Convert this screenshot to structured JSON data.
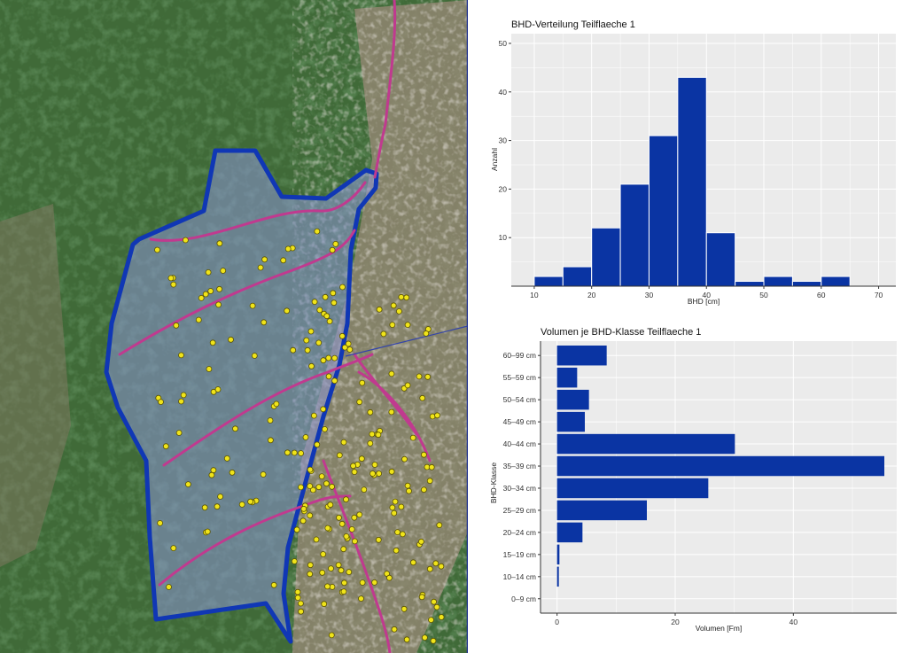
{
  "colors": {
    "polygon": "#1037b5",
    "polygon_fill": "#8c95d6",
    "tracks": "#c03a8f",
    "trees": "#f0e41a",
    "bars": "#0a34a3",
    "panel_bg": "#ebebeb"
  },
  "map": {
    "icons": [
      "aerial-forest-image",
      "stand-polygon",
      "skid-trail-lines",
      "tree-point-markers"
    ]
  },
  "chart_data": [
    {
      "type": "bar",
      "title": "BHD-Verteilung Teilflaeche 1",
      "xlabel": "BHD [cm]",
      "ylabel": "Anzahl",
      "bin_width": 5,
      "bins": [
        {
          "from": 10,
          "to": 15,
          "count": 2
        },
        {
          "from": 15,
          "to": 20,
          "count": 4
        },
        {
          "from": 20,
          "to": 25,
          "count": 12
        },
        {
          "from": 25,
          "to": 30,
          "count": 21
        },
        {
          "from": 30,
          "to": 35,
          "count": 31
        },
        {
          "from": 35,
          "to": 40,
          "count": 43
        },
        {
          "from": 40,
          "to": 45,
          "count": 11
        },
        {
          "from": 45,
          "to": 50,
          "count": 1
        },
        {
          "from": 50,
          "to": 55,
          "count": 2
        },
        {
          "from": 55,
          "to": 60,
          "count": 1
        },
        {
          "from": 60,
          "to": 65,
          "count": 2
        }
      ],
      "xlim": [
        6,
        73
      ],
      "ylim": [
        0,
        52
      ],
      "xticks": [
        "10",
        "20",
        "30",
        "40",
        "50",
        "60",
        "70"
      ],
      "yticks": [
        "10",
        "20",
        "30",
        "40",
        "50"
      ],
      "grid": true,
      "legend": "none"
    },
    {
      "type": "bar",
      "orientation": "horizontal",
      "title": "Volumen je BHD-Klasse Teilflaeche 1",
      "xlabel": "Volumen [Fm]",
      "ylabel": "BHD-Klasse",
      "categories": [
        "0–9 cm",
        "10–14 cm",
        "15–19 cm",
        "20–24 cm",
        "25–29 cm",
        "30–34 cm",
        "35–39 cm",
        "40–44 cm",
        "45–49 cm",
        "50–54 cm",
        "55–59 cm",
        "60–99 cm"
      ],
      "values": [
        0,
        0.3,
        0.4,
        4.3,
        15.2,
        25.6,
        55.4,
        30.1,
        4.7,
        5.4,
        3.4,
        8.4
      ],
      "xlim": [
        -2.8,
        57.5
      ],
      "xticks": [
        "0",
        "20",
        "40"
      ],
      "grid": true,
      "legend": "none"
    }
  ]
}
